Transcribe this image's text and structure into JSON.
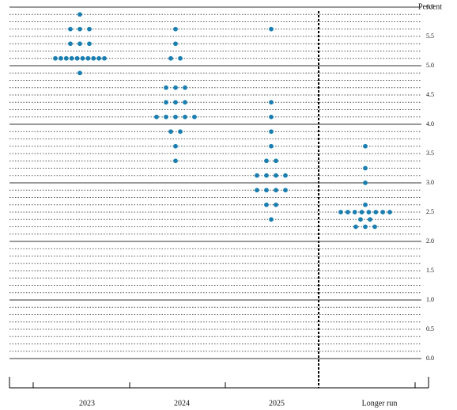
{
  "chart_data": {
    "type": "dot",
    "y_axis_label": "Percent",
    "color": "#1a7fb0",
    "ylim": [
      0,
      6
    ],
    "grid_step": 0.125,
    "yticks": [
      {
        "value": 0,
        "label": "0.0"
      },
      {
        "value": 0.5,
        "label": "0.5"
      },
      {
        "value": 1,
        "label": "1.0"
      },
      {
        "value": 1.5,
        "label": "1.5"
      },
      {
        "value": 2,
        "label": "2.0"
      },
      {
        "value": 2.5,
        "label": "2.5"
      },
      {
        "value": 3,
        "label": "3.0"
      },
      {
        "value": 3.5,
        "label": "3.5"
      },
      {
        "value": 4,
        "label": "4.0"
      },
      {
        "value": 4.5,
        "label": "4.5"
      },
      {
        "value": 5,
        "label": "5.0"
      },
      {
        "value": 5.5,
        "label": "5.5"
      },
      {
        "value": 6,
        "label": "6.0"
      }
    ],
    "series": [
      {
        "name": "2023",
        "values": [
          5.875,
          5.625,
          5.625,
          5.625,
          5.375,
          5.375,
          5.375,
          5.125,
          5.125,
          5.125,
          5.125,
          5.125,
          5.125,
          5.125,
          5.125,
          5.125,
          5.125,
          4.875
        ]
      },
      {
        "name": "2024",
        "values": [
          5.625,
          5.375,
          5.125,
          5.125,
          4.625,
          4.625,
          4.625,
          4.375,
          4.375,
          4.375,
          4.125,
          4.125,
          4.125,
          4.125,
          4.125,
          3.875,
          3.875,
          3.625,
          3.375
        ]
      },
      {
        "name": "2025",
        "values": [
          5.625,
          4.375,
          4.125,
          3.875,
          3.625,
          3.375,
          3.375,
          3.125,
          3.125,
          3.125,
          3.125,
          2.875,
          2.875,
          2.875,
          2.875,
          2.625,
          2.625,
          2.375
        ]
      },
      {
        "name": "Longer run",
        "values": [
          3.625,
          3.25,
          3,
          2.625,
          2.5,
          2.5,
          2.5,
          2.5,
          2.5,
          2.5,
          2.5,
          2.5,
          2.375,
          2.375,
          2.25,
          2.25,
          2.25
        ]
      }
    ]
  }
}
